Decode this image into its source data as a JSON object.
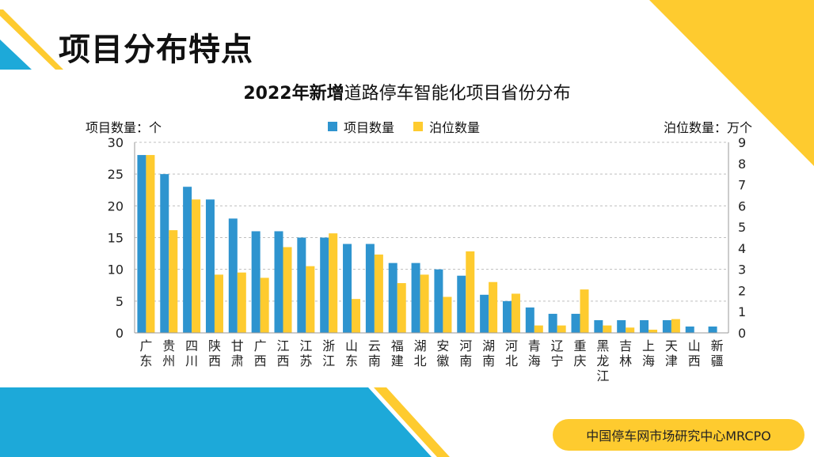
{
  "page": {
    "title": "项目分布特点"
  },
  "footer": {
    "label": "中国停车网市场研究中心MRCPO"
  },
  "colors": {
    "blue": "#2e94cf",
    "yellow": "#fecb2f",
    "cyan": "#1da9d9",
    "grid": "#bfbfbf"
  },
  "chart_data": {
    "type": "bar",
    "title_bold": "2022年新增",
    "title_rest": "道路停车智能化项目省份分布",
    "ylabel_left": "项目数量：个",
    "ylabel_right": "泊位数量：万个",
    "ylim_left": [
      0,
      30
    ],
    "ylim_right": [
      0,
      9
    ],
    "left_ticks": [
      0,
      5,
      10,
      15,
      20,
      25,
      30
    ],
    "right_ticks": [
      0,
      1,
      2,
      3,
      4,
      5,
      6,
      7,
      8,
      9
    ],
    "grid": true,
    "legend_position": "top-center",
    "categories": [
      "广东",
      "贵州",
      "四川",
      "陕西",
      "甘肃",
      "广西",
      "江西",
      "江苏",
      "浙江",
      "山东",
      "云南",
      "福建",
      "湖北",
      "安徽",
      "河南",
      "湖南",
      "河北",
      "青海",
      "辽宁",
      "重庆",
      "黑龙江",
      "吉林",
      "上海",
      "天津",
      "山西",
      "新疆"
    ],
    "series": [
      {
        "name": "项目数量",
        "axis": "left",
        "color": "#2e94cf",
        "values": [
          28,
          25,
          23,
          21,
          18,
          16,
          16,
          15,
          15,
          14,
          14,
          11,
          11,
          10,
          9,
          6,
          5,
          4,
          3,
          3,
          2,
          2,
          2,
          2,
          1,
          1
        ]
      },
      {
        "name": "泊位数量",
        "axis": "right",
        "color": "#fecb2f",
        "values": [
          8.4,
          4.85,
          6.3,
          2.75,
          2.85,
          2.6,
          4.05,
          3.15,
          4.7,
          1.6,
          3.7,
          2.35,
          2.75,
          1.7,
          3.85,
          2.4,
          1.85,
          0.35,
          0.35,
          2.05,
          0.35,
          0.25,
          0.15,
          0.65,
          0,
          0
        ]
      }
    ]
  }
}
